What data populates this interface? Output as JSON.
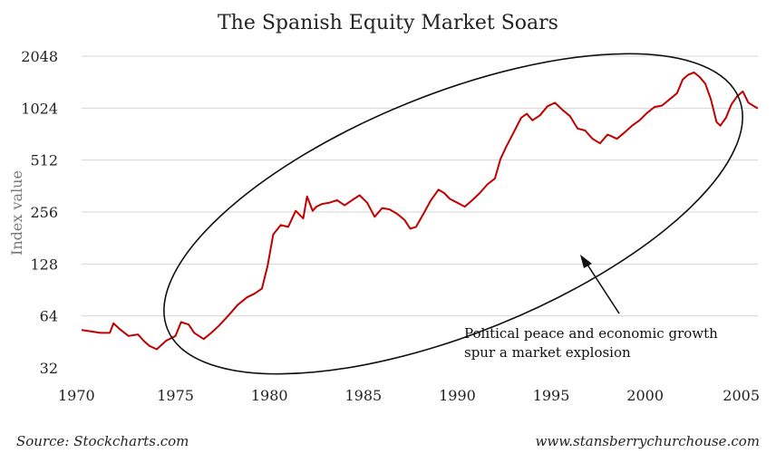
{
  "chart_data": {
    "type": "line",
    "title": "The Spanish Equity Market Soars",
    "xlabel": "",
    "ylabel": "Index value",
    "yscale": "log2",
    "ylim": [
      32,
      2048
    ],
    "xlim": [
      1970,
      2006
    ],
    "y_ticks": [
      "32",
      "64",
      "128",
      "256",
      "512",
      "1024",
      "2048"
    ],
    "x_ticks": [
      "1970",
      "1975",
      "1980",
      "1985",
      "1990",
      "1995",
      "2000",
      "2005"
    ],
    "grid": true,
    "color": "#c00000",
    "series": [
      {
        "x": [
          1970.0,
          1970.5,
          1971.0,
          1971.5,
          1971.7,
          1972.0,
          1972.5,
          1973.0,
          1973.3,
          1973.6,
          1974.0,
          1974.5,
          1975.0,
          1975.3,
          1975.7,
          1976.0,
          1976.5,
          1976.9,
          1977.3,
          1977.8,
          1978.3,
          1978.8,
          1979.2,
          1979.6,
          1979.9,
          1980.2,
          1980.6,
          1981.0,
          1981.4,
          1981.8,
          1982.0,
          1982.3,
          1982.5,
          1982.8,
          1983.2,
          1983.6,
          1984.0,
          1984.4,
          1984.8,
          1985.2,
          1985.6,
          1986.0,
          1986.4,
          1986.8,
          1987.2,
          1987.5,
          1987.8,
          1988.2,
          1988.6,
          1989.0,
          1989.3,
          1989.6,
          1990.0,
          1990.4,
          1990.8,
          1991.2,
          1991.6,
          1992.0,
          1992.3,
          1992.6,
          1993.0,
          1993.4,
          1993.7,
          1994.0,
          1994.4,
          1994.8,
          1995.2,
          1995.6,
          1996.0,
          1996.4,
          1996.8,
          1997.2,
          1997.6,
          1998.0,
          1998.5,
          1998.9,
          1999.3,
          1999.7,
          2000.1,
          2000.5,
          2000.9,
          2001.3,
          2001.7,
          2002.0,
          2002.3,
          2002.6,
          2002.9,
          2003.2,
          2003.5,
          2003.8,
          2004.0,
          2004.3,
          2004.6,
          2004.9,
          2005.2,
          2005.5,
          2005.8,
          2006.0
        ],
        "values": [
          53,
          52,
          51,
          51,
          58,
          54,
          49,
          50,
          46,
          43,
          41,
          46,
          49,
          59,
          57,
          51,
          47,
          51,
          56,
          64,
          74,
          82,
          86,
          92,
          125,
          190,
          215,
          210,
          260,
          235,
          315,
          260,
          275,
          285,
          290,
          300,
          280,
          300,
          320,
          290,
          240,
          270,
          265,
          250,
          230,
          205,
          210,
          250,
          300,
          345,
          330,
          305,
          290,
          275,
          300,
          330,
          370,
          400,
          520,
          610,
          740,
          900,
          950,
          870,
          930,
          1050,
          1100,
          1000,
          920,
          780,
          760,
          680,
          640,
          720,
          680,
          740,
          810,
          870,
          960,
          1040,
          1060,
          1150,
          1250,
          1500,
          1600,
          1650,
          1550,
          1420,
          1150,
          850,
          810,
          900,
          1080,
          1200,
          1280,
          1100,
          1050,
          1020
        ]
      }
    ],
    "annotation": {
      "line1": "Political peace and economic growth",
      "line2": "spur a market explosion"
    }
  },
  "footer": {
    "source": "Source: Stockcharts.com",
    "website": "www.stansberrychurchouse.com"
  }
}
